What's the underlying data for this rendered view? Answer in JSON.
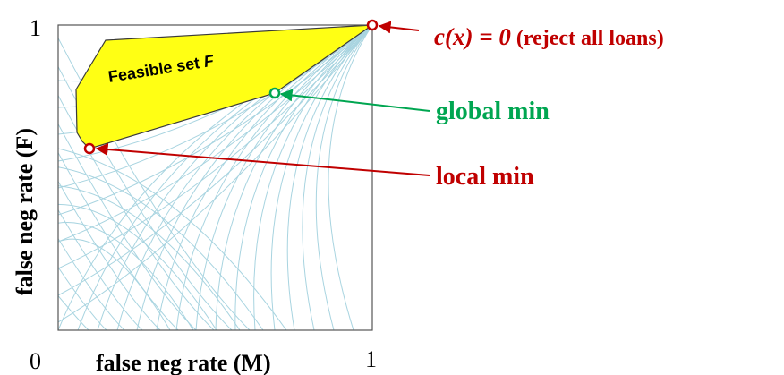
{
  "axes": {
    "x_label": "false neg rate (M)",
    "y_label": "false neg rate (F)",
    "origin_tick": "0",
    "x_max_tick": "1",
    "y_max_tick": "1"
  },
  "region": {
    "label_prefix": "Feasible set ",
    "label_var": "F",
    "fill_color": "#ffff14"
  },
  "annotations": {
    "reject_all_math": "c(x) = 0",
    "reject_all_text": " (reject all loans)",
    "global_min": "global min",
    "local_min": "local min"
  },
  "colors": {
    "red": "#c00000",
    "green": "#00a651",
    "contour": "#a8d4e0",
    "frame": "#555555"
  }
}
